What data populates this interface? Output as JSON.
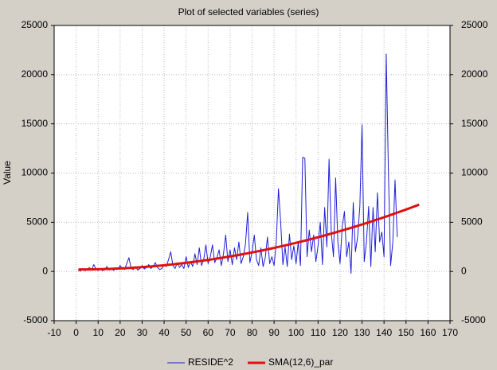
{
  "chart_data": {
    "type": "line",
    "title": "Plot of selected variables (series)",
    "y_label": "Value",
    "x": [
      1,
      2,
      3,
      4,
      5,
      6,
      7,
      8,
      9,
      10,
      11,
      12,
      13,
      14,
      15,
      16,
      17,
      18,
      19,
      20,
      21,
      22,
      23,
      24,
      25,
      26,
      27,
      28,
      29,
      30,
      31,
      32,
      33,
      34,
      35,
      36,
      37,
      38,
      39,
      40,
      41,
      42,
      43,
      44,
      45,
      46,
      47,
      48,
      49,
      50,
      51,
      52,
      53,
      54,
      55,
      56,
      57,
      58,
      59,
      60,
      61,
      62,
      63,
      64,
      65,
      66,
      67,
      68,
      69,
      70,
      71,
      72,
      73,
      74,
      75,
      76,
      77,
      78,
      79,
      80,
      81,
      82,
      83,
      84,
      85,
      86,
      87,
      88,
      89,
      90,
      91,
      92,
      93,
      94,
      95,
      96,
      97,
      98,
      99,
      100,
      101,
      102,
      103,
      104,
      105,
      106,
      107,
      108,
      109,
      110,
      111,
      112,
      113,
      114,
      115,
      116,
      117,
      118,
      119,
      120,
      121,
      122,
      123,
      124,
      125,
      126,
      127,
      128,
      129,
      130,
      131,
      132,
      133,
      134,
      135,
      136,
      137,
      138,
      139,
      140,
      141,
      142,
      143,
      144,
      145,
      146,
      147,
      148,
      149,
      150,
      151,
      152,
      153,
      154,
      155,
      156
    ],
    "series": [
      {
        "name": "RESIDE^2",
        "color": "#1f1fd8",
        "width": 1,
        "values": [
          100,
          50,
          300,
          80,
          200,
          400,
          150,
          700,
          250,
          100,
          300,
          80,
          200,
          500,
          150,
          350,
          100,
          400,
          250,
          600,
          300,
          200,
          800,
          1400,
          300,
          200,
          500,
          150,
          300,
          600,
          250,
          400,
          700,
          300,
          500,
          900,
          400,
          200,
          300,
          700,
          500,
          1200,
          2000,
          600,
          300,
          900,
          400,
          700,
          300,
          1500,
          400,
          1000,
          500,
          1800,
          700,
          2400,
          600,
          1200,
          2700,
          800,
          1500,
          2700,
          900,
          1400,
          2200,
          600,
          1800,
          3700,
          1000,
          2200,
          700,
          2400,
          1200,
          3000,
          800,
          1500,
          2800,
          6000,
          900,
          2000,
          3700,
          1200,
          600,
          2400,
          500,
          1400,
          3500,
          800,
          1500,
          600,
          3000,
          8400,
          5000,
          700,
          2500,
          500,
          3800,
          1200,
          2600,
          800,
          3000,
          600,
          11600,
          11500,
          1500,
          4200,
          2000,
          3700,
          1000,
          2600,
          5000,
          700,
          6500,
          2500,
          11400,
          4000,
          1500,
          9500,
          3000,
          800,
          4600,
          6100,
          1500,
          3000,
          -200,
          7000,
          2000,
          3500,
          6600,
          14900,
          1000,
          3000,
          6600,
          500,
          6500,
          2000,
          8000,
          3000,
          4000,
          1500,
          22100,
          10000,
          600,
          3000,
          9300,
          3500,
          null,
          null,
          null,
          null,
          null,
          null,
          null,
          null,
          null,
          null
        ]
      },
      {
        "name": "SMA(12,6)_par",
        "color": "#e01010",
        "width": 3,
        "values": [
          200,
          201,
          202,
          204,
          207,
          210,
          213,
          217,
          222,
          227,
          233,
          239,
          246,
          253,
          261,
          269,
          278,
          288,
          298,
          308,
          320,
          331,
          343,
          356,
          369,
          383,
          398,
          412,
          428,
          444,
          460,
          478,
          495,
          513,
          532,
          551,
          571,
          591,
          612,
          634,
          656,
          678,
          701,
          725,
          749,
          773,
          799,
          824,
          851,
          878,
          905,
          933,
          961,
          990,
          1020,
          1050,
          1080,
          1112,
          1143,
          1176,
          1208,
          1242,
          1276,
          1310,
          1345,
          1380,
          1417,
          1453,
          1490,
          1528,
          1566,
          1605,
          1644,
          1684,
          1724,
          1765,
          1807,
          1849,
          1891,
          1934,
          1978,
          2022,
          2067,
          2112,
          2158,
          2204,
          2251,
          2299,
          2347,
          2395,
          2444,
          2494,
          2544,
          2595,
          2646,
          2697,
          2750,
          2803,
          2856,
          2910,
          2965,
          3020,
          3075,
          3131,
          3188,
          3245,
          3303,
          3361,
          3420,
          3479,
          3539,
          3599,
          3660,
          3722,
          3784,
          3847,
          3910,
          3973,
          4038,
          4102,
          4168,
          4234,
          4300,
          4367,
          4434,
          4502,
          4571,
          4640,
          4710,
          4780,
          4851,
          4922,
          4994,
          5066,
          5139,
          5213,
          5287,
          5361,
          5436,
          5512,
          5588,
          5665,
          5742,
          5820,
          5898,
          5977,
          6057,
          6136,
          6217,
          6298,
          6379,
          6461,
          6544,
          6627,
          6711,
          6795
        ]
      }
    ],
    "xlim": [
      -10,
      170
    ],
    "xticks": [
      -10,
      0,
      10,
      20,
      30,
      40,
      50,
      60,
      70,
      80,
      90,
      100,
      110,
      120,
      130,
      140,
      150,
      160,
      170
    ],
    "ylim": [
      -5000,
      25000
    ],
    "yticks": [
      -5000,
      0,
      5000,
      10000,
      15000,
      20000,
      25000
    ],
    "grid": true,
    "legend": "bottom"
  }
}
